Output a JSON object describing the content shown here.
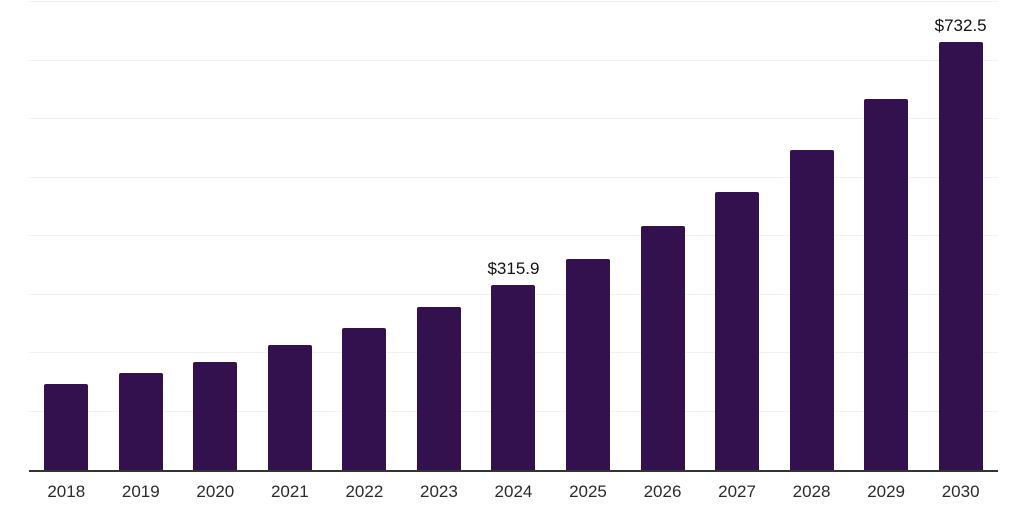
{
  "chart_data": {
    "type": "bar",
    "title": "",
    "xlabel": "",
    "ylabel": "",
    "categories": [
      "2018",
      "2019",
      "2020",
      "2021",
      "2022",
      "2023",
      "2024",
      "2025",
      "2026",
      "2027",
      "2028",
      "2029",
      "2030"
    ],
    "values": [
      146.2,
      165.0,
      183.8,
      214.5,
      243.6,
      279.5,
      315.9,
      360.7,
      417.1,
      474.4,
      546.2,
      633.4,
      732.5
    ],
    "data_labels": [
      "",
      "",
      "",
      "",
      "",
      "",
      "$315.9",
      "",
      "",
      "",
      "",
      "",
      "$732.5"
    ],
    "ylim": [
      0,
      800
    ],
    "gridline_step": 100,
    "grid": true,
    "legend": false,
    "colors": {
      "bar": "#33114e",
      "value_label": "#111111",
      "tick_label": "#2b2b2b",
      "axis_line": "#333333",
      "gridline": "#f2f2f2",
      "background": "#ffffff"
    }
  }
}
